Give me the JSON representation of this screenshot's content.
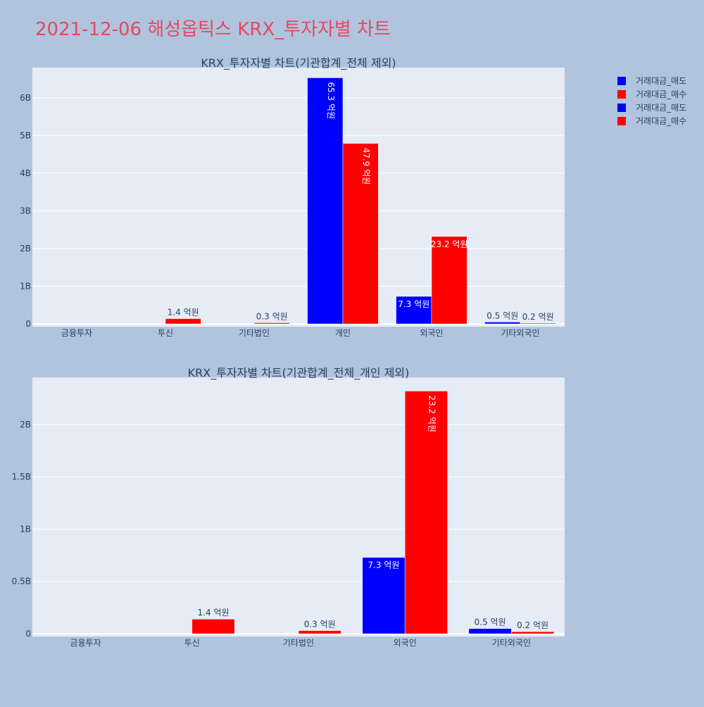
{
  "page_title": "2021-12-06 해성옵틱스 KRX_투자자별 차트",
  "legend": {
    "entries": [
      {
        "label": "거래대금_매도",
        "color": "#0000ff"
      },
      {
        "label": "거래대금_매수",
        "color": "#ff0000"
      },
      {
        "label": "거래대금_매도",
        "color": "#0000ff"
      },
      {
        "label": "거래대금_매수",
        "color": "#ff0000"
      }
    ]
  },
  "colors": {
    "background": "#b0c4de",
    "plot_background": "#e5ecf6",
    "title": "#e8475f",
    "sell": "#0000ff",
    "buy": "#ff0000"
  },
  "chart_data": [
    {
      "type": "bar",
      "title": "KRX_투자자별 차트(기관합계_전체 제외)",
      "categories": [
        "금융투자",
        "투신",
        "기타법인",
        "개인",
        "외국인",
        "기타외국인"
      ],
      "ylim": [
        0,
        6.8
      ],
      "y_unit": "B",
      "yticks": [
        0,
        1,
        2,
        3,
        4,
        5,
        6
      ],
      "ytick_labels": [
        "0",
        "1B",
        "2B",
        "3B",
        "4B",
        "5B",
        "6B"
      ],
      "grid": true,
      "series": [
        {
          "name": "거래대금_매도",
          "values": [
            0,
            0,
            0,
            6.53,
            0.73,
            0.05
          ],
          "labels": [
            "",
            "",
            "",
            "65.3 억원",
            "7.3 억원",
            "0.5 억원"
          ]
        },
        {
          "name": "거래대금_매수",
          "values": [
            0,
            0.14,
            0.03,
            4.79,
            2.32,
            0.02
          ],
          "labels": [
            "",
            "1.4 억원",
            "0.3 억원",
            "47.9 억원",
            "23.2 억원",
            "0.2 억원"
          ]
        }
      ]
    },
    {
      "type": "bar",
      "title": "KRX_투자자별 차트(기관합계_전체_개인 제외)",
      "categories": [
        "금융투자",
        "투신",
        "기타법인",
        "외국인",
        "기타외국인"
      ],
      "ylim": [
        0,
        2.45
      ],
      "y_unit": "B",
      "yticks": [
        0,
        0.5,
        1,
        1.5,
        2
      ],
      "ytick_labels": [
        "0",
        "0.5B",
        "1B",
        "1.5B",
        "2B"
      ],
      "grid": true,
      "series": [
        {
          "name": "거래대금_매도",
          "values": [
            0,
            0,
            0,
            0.73,
            0.05
          ],
          "labels": [
            "",
            "",
            "",
            "7.3 억원",
            "0.5 억원"
          ]
        },
        {
          "name": "거래대금_매수",
          "values": [
            0,
            0.14,
            0.03,
            2.32,
            0.02
          ],
          "labels": [
            "",
            "1.4 억원",
            "0.3 억원",
            "23.2 억원",
            "0.2 억원"
          ]
        }
      ]
    }
  ]
}
